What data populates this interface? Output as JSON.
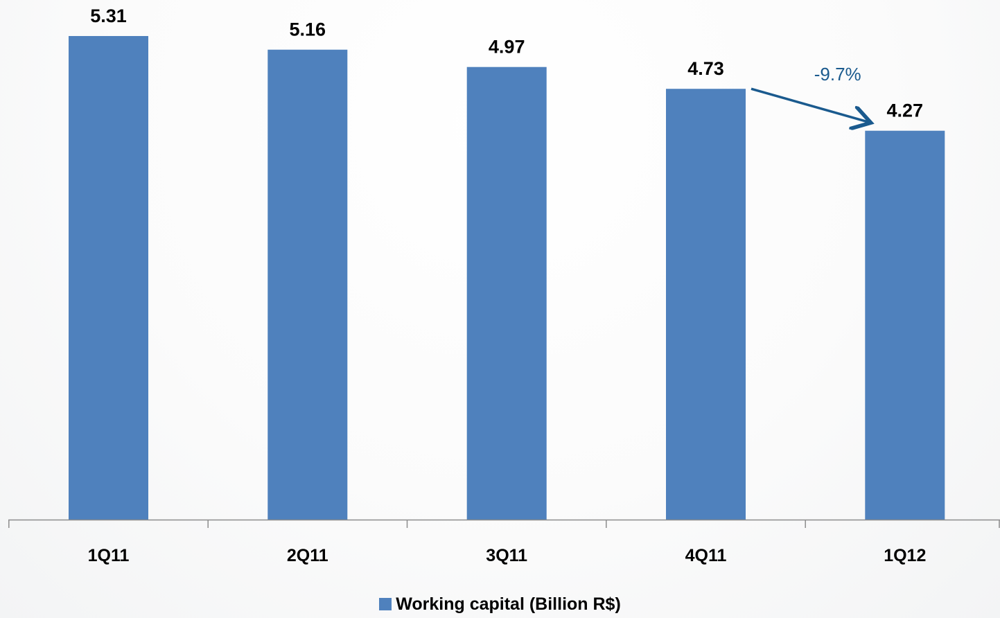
{
  "chart_data": {
    "type": "bar",
    "categories": [
      "1Q11",
      "2Q11",
      "3Q11",
      "4Q11",
      "1Q12"
    ],
    "series": [
      {
        "name": "Working capital (Billion R$)",
        "values": [
          5.31,
          5.16,
          4.97,
          4.73,
          4.27
        ],
        "color": "#4f81bd"
      }
    ],
    "data_labels": [
      "5.31",
      "5.16",
      "4.97",
      "4.73",
      "4.27"
    ],
    "title": "",
    "xlabel": "",
    "ylabel": "",
    "ylim": [
      0,
      5.31
    ],
    "grid": false,
    "legend_position": "bottom",
    "annotation": {
      "text": "-9.7%",
      "from_category": "4Q11",
      "to_category": "1Q12",
      "color": "#1a5a8e"
    }
  }
}
